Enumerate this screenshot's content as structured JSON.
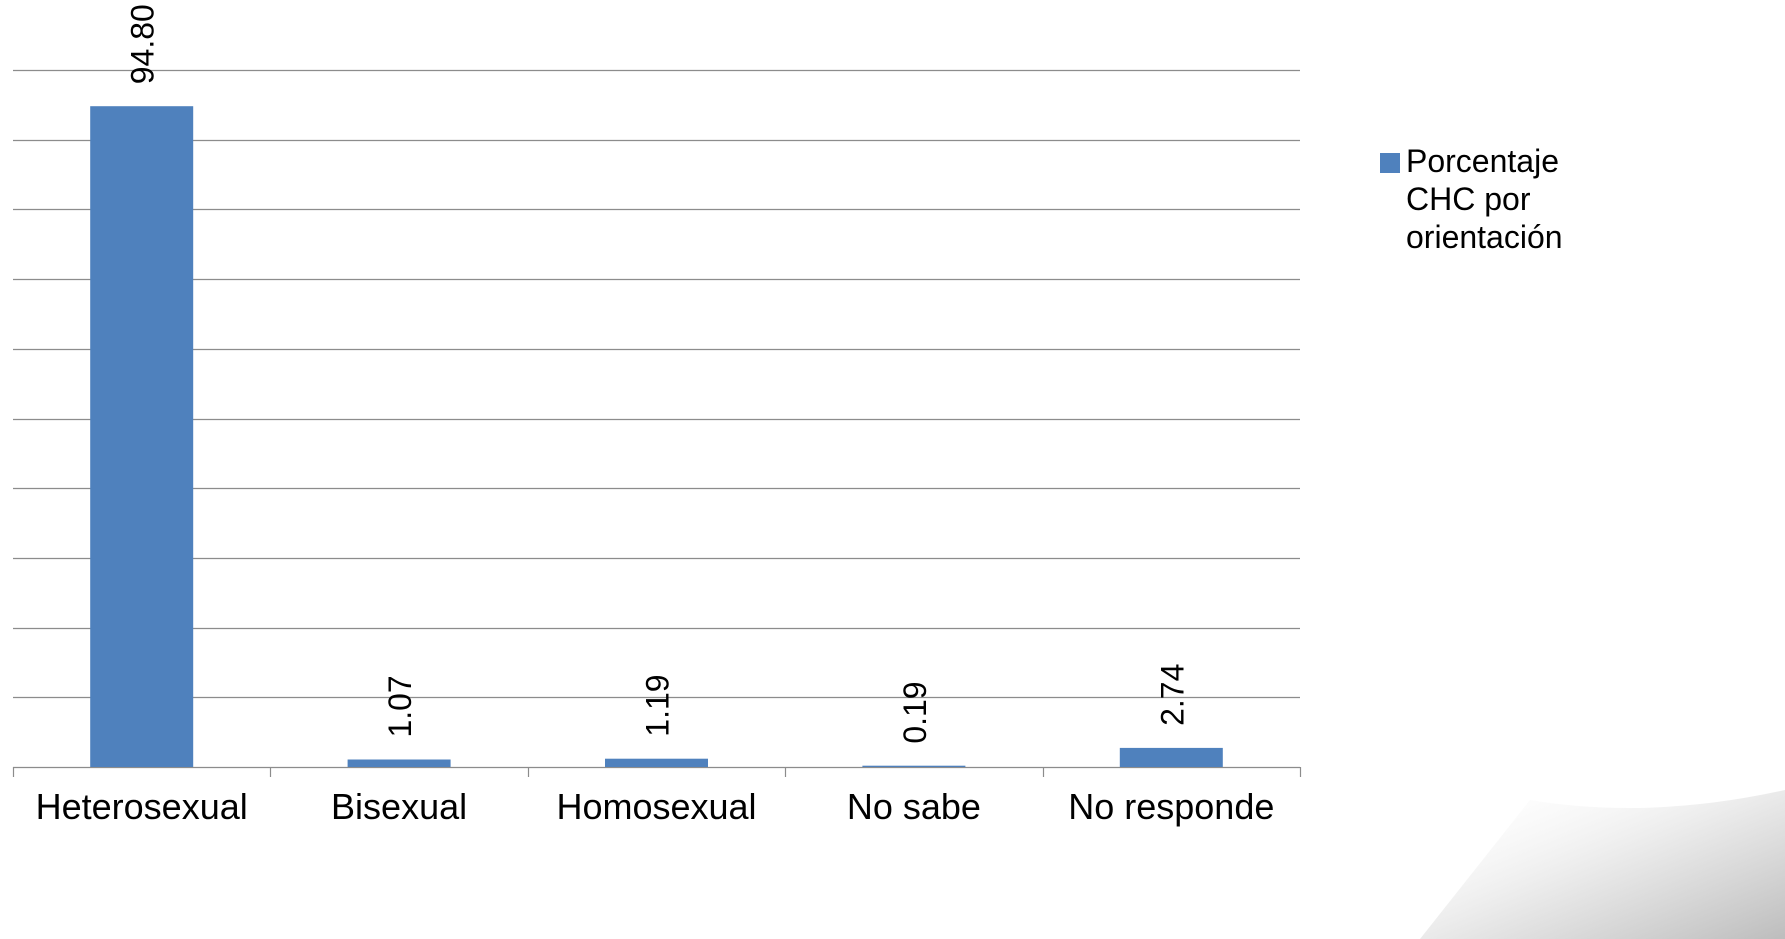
{
  "chart_data": {
    "type": "bar",
    "title": "",
    "xlabel": "",
    "ylabel": "",
    "categories": [
      "Heterosexual",
      "Bisexual",
      "Homosexual",
      "No sabe",
      "No responde"
    ],
    "series": [
      {
        "name_lines": [
          "Porcentaje",
          "CHC por",
          "orientación"
        ],
        "values": [
          94.8,
          1.07,
          1.19,
          0.19,
          2.74
        ],
        "value_labels": [
          "94.80",
          "1.07",
          "1.19",
          "0.19",
          "2.74"
        ],
        "color": "#4F81BD"
      }
    ],
    "ylim": [
      0,
      100
    ],
    "y_gridline_step": 10,
    "grid": true,
    "legend_position": "right"
  }
}
